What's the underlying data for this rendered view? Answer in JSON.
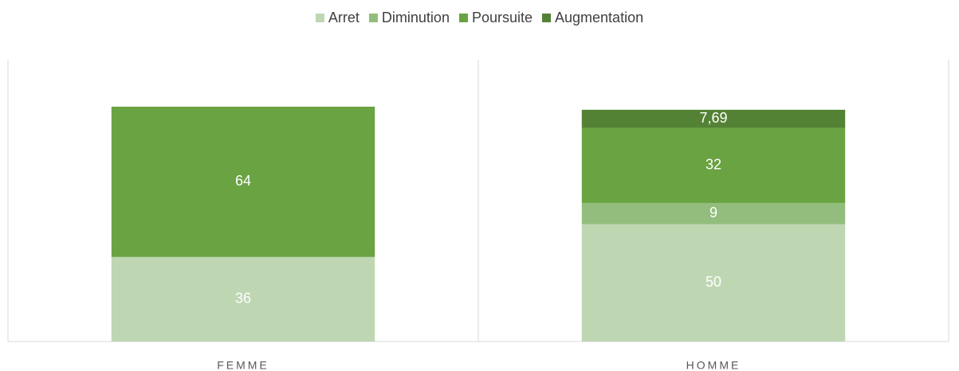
{
  "chart_data": {
    "type": "stacked_bar",
    "categories": [
      "FEMME",
      "HOMME"
    ],
    "series": [
      {
        "name": "Arret",
        "color": "#bfd6b3",
        "values": [
          36,
          50
        ]
      },
      {
        "name": "Diminution",
        "color": "#93bd7c",
        "values": [
          null,
          9
        ]
      },
      {
        "name": "Poursuite",
        "color": "#6aa342",
        "values": [
          64,
          32
        ]
      },
      {
        "name": "Augmentation",
        "color": "#548235",
        "values": [
          null,
          7.69
        ],
        "value_labels": [
          null,
          "7,69"
        ]
      }
    ],
    "ylim": [
      0,
      120
    ],
    "legend": "top"
  }
}
